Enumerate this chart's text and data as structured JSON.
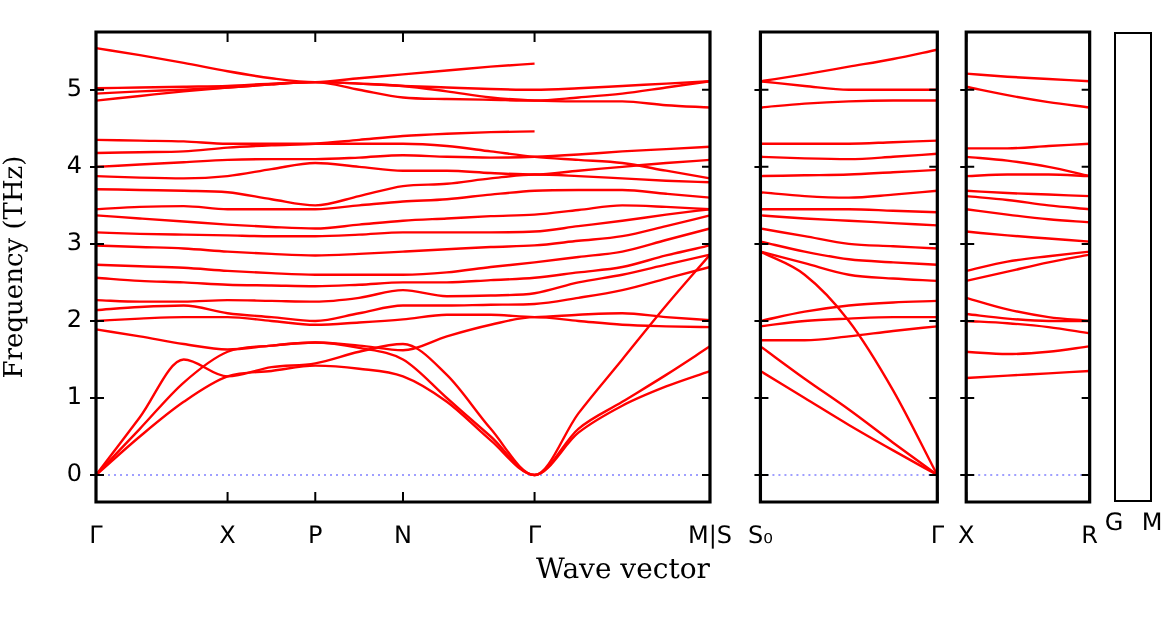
{
  "chart_data": [
    {
      "type": "line",
      "xlabel": "Wave vector",
      "ylabel": "Frequency (THz)",
      "marker": "none",
      "line_style": "solid",
      "legend": false,
      "grid": false,
      "categories": [
        "Γ",
        null,
        null,
        "X",
        null,
        "P",
        null,
        "N",
        null,
        null,
        "Γ",
        null,
        null,
        null,
        "M|S"
      ],
      "ylim": [
        -0.35,
        5.75
      ],
      "yticks": [
        0,
        1,
        2,
        3,
        4,
        5
      ],
      "ref_lines": [
        {
          "axis": "y",
          "value": 0,
          "color": "#8080ff",
          "line_style": "dotted"
        }
      ],
      "series": [
        {
          "color": "#ff0000",
          "values": [
            0,
            0.5,
            0.95,
            1.28,
            1.35,
            1.42,
            1.38,
            1.28,
            0.95,
            0.45,
            0,
            0.55,
            0.9,
            1.15,
            1.35
          ]
        },
        {
          "color": "#ff0000",
          "values": [
            0,
            0.6,
            1.2,
            1.6,
            1.68,
            1.72,
            1.65,
            1.5,
            1.0,
            0.5,
            0,
            0.6,
            0.95,
            1.3,
            1.67
          ]
        },
        {
          "color": "#ff0000",
          "values": [
            0,
            0.75,
            1.5,
            1.28,
            1.4,
            1.45,
            1.6,
            1.7,
            1.3,
            0.6,
            0,
            0.8,
            1.5,
            2.2,
            2.86
          ]
        },
        {
          "color": "#ff0000",
          "values": [
            1.89,
            1.8,
            1.7,
            1.63,
            1.68,
            1.72,
            1.68,
            1.62,
            1.8,
            1.95,
            2.05,
            2.0,
            1.95,
            1.93,
            1.92
          ]
        },
        {
          "color": "#ff0000",
          "values": [
            2.0,
            2.03,
            2.05,
            2.05,
            2.0,
            1.95,
            1.98,
            2.02,
            2.08,
            2.08,
            2.05,
            2.08,
            2.1,
            2.05,
            2.01
          ]
        },
        {
          "color": "#ff0000",
          "values": [
            2.14,
            2.18,
            2.2,
            2.1,
            2.05,
            2.0,
            2.1,
            2.2,
            2.2,
            2.21,
            2.22,
            2.3,
            2.4,
            2.55,
            2.7
          ]
        },
        {
          "color": "#ff0000",
          "values": [
            2.27,
            2.25,
            2.25,
            2.27,
            2.26,
            2.25,
            2.3,
            2.4,
            2.32,
            2.33,
            2.36,
            2.5,
            2.6,
            2.73,
            2.86
          ]
        },
        {
          "color": "#ff0000",
          "values": [
            2.56,
            2.52,
            2.5,
            2.47,
            2.46,
            2.45,
            2.47,
            2.5,
            2.5,
            2.53,
            2.56,
            2.63,
            2.7,
            2.85,
            2.98
          ]
        },
        {
          "color": "#ff0000",
          "values": [
            2.73,
            2.71,
            2.69,
            2.65,
            2.62,
            2.6,
            2.6,
            2.6,
            2.63,
            2.7,
            2.76,
            2.83,
            2.9,
            3.05,
            3.2
          ]
        },
        {
          "color": "#ff0000",
          "values": [
            2.98,
            2.96,
            2.94,
            2.9,
            2.87,
            2.85,
            2.87,
            2.9,
            2.93,
            2.96,
            2.98,
            3.04,
            3.1,
            3.23,
            3.37
          ]
        },
        {
          "color": "#ff0000",
          "values": [
            3.15,
            3.13,
            3.12,
            3.11,
            3.1,
            3.1,
            3.12,
            3.15,
            3.15,
            3.15,
            3.16,
            3.23,
            3.3,
            3.38,
            3.45
          ]
        },
        {
          "color": "#ff0000",
          "values": [
            3.37,
            3.33,
            3.29,
            3.25,
            3.22,
            3.2,
            3.25,
            3.3,
            3.33,
            3.36,
            3.38,
            3.44,
            3.5,
            3.48,
            3.45
          ]
        },
        {
          "color": "#ff0000",
          "values": [
            3.45,
            3.48,
            3.49,
            3.45,
            3.45,
            3.45,
            3.5,
            3.55,
            3.58,
            3.64,
            3.69,
            3.7,
            3.7,
            3.65,
            3.6
          ]
        },
        {
          "color": "#ff0000",
          "values": [
            3.71,
            3.7,
            3.69,
            3.67,
            3.58,
            3.5,
            3.62,
            3.75,
            3.78,
            3.85,
            3.9,
            3.88,
            3.85,
            3.82,
            3.8
          ]
        },
        {
          "color": "#ff0000",
          "values": [
            3.88,
            3.86,
            3.85,
            3.88,
            3.97,
            4.05,
            4.0,
            3.95,
            3.95,
            3.92,
            3.9,
            3.95,
            4.0,
            4.05,
            4.09
          ]
        },
        {
          "color": "#ff0000",
          "values": [
            4.0,
            4.03,
            4.06,
            4.09,
            4.1,
            4.1,
            4.12,
            4.15,
            4.13,
            4.12,
            4.13,
            4.16,
            4.2,
            4.23,
            4.26
          ]
        },
        {
          "color": "#ff0000",
          "values": [
            4.18,
            4.19,
            4.2,
            4.25,
            4.28,
            4.3,
            4.35,
            4.4,
            4.43,
            4.45,
            4.46,
            null,
            null,
            null,
            null
          ]
        },
        {
          "color": "#ff0000",
          "values": [
            4.35,
            4.34,
            4.33,
            4.3,
            4.3,
            4.3,
            4.3,
            4.3,
            4.27,
            4.2,
            4.13,
            4.09,
            4.05,
            3.95,
            3.85
          ]
        },
        {
          "color": "#ff0000",
          "values": [
            4.86,
            4.92,
            4.98,
            5.03,
            5.07,
            5.1,
            5.08,
            5.05,
            4.98,
            4.9,
            4.86,
            4.85,
            4.85,
            4.8,
            4.77
          ]
        },
        {
          "color": "#ff0000",
          "values": [
            5.02,
            5.03,
            5.04,
            5.05,
            5.08,
            5.1,
            5.0,
            4.9,
            4.88,
            4.87,
            4.86,
            4.9,
            4.95,
            5.03,
            5.11
          ]
        },
        {
          "color": "#ff0000",
          "values": [
            4.95,
            4.98,
            5.0,
            5.03,
            5.07,
            5.1,
            5.08,
            5.05,
            5.03,
            5.01,
            5.0,
            5.02,
            5.05,
            5.08,
            5.11
          ]
        },
        {
          "color": "#ff0000",
          "values": [
            5.54,
            5.45,
            5.35,
            5.24,
            5.15,
            5.1,
            5.15,
            5.2,
            5.25,
            5.3,
            5.34,
            null,
            null,
            null,
            null
          ]
        }
      ]
    },
    {
      "type": "line",
      "marker": "none",
      "line_style": "solid",
      "legend": false,
      "grid": false,
      "tick_labels": "x",
      "categories": [
        "S₀",
        null,
        null,
        null,
        "Γ"
      ],
      "ylim": [
        -0.35,
        5.75
      ],
      "yticks": [
        0,
        1,
        2,
        3,
        4,
        5
      ],
      "ref_lines": [
        {
          "axis": "y",
          "value": 0,
          "color": "#8080ff",
          "line_style": "dotted"
        }
      ],
      "series": [
        {
          "color": "#ff0000",
          "values": [
            1.35,
            1.0,
            0.65,
            0.32,
            0
          ]
        },
        {
          "color": "#ff0000",
          "values": [
            1.67,
            1.25,
            0.85,
            0.42,
            0
          ]
        },
        {
          "color": "#ff0000",
          "values": [
            2.9,
            2.6,
            2.0,
            1.1,
            0
          ]
        },
        {
          "color": "#ff0000",
          "values": [
            1.75,
            1.75,
            1.8,
            1.87,
            1.93
          ]
        },
        {
          "color": "#ff0000",
          "values": [
            1.93,
            2.0,
            2.03,
            2.05,
            2.05
          ]
        },
        {
          "color": "#ff0000",
          "values": [
            2.0,
            2.12,
            2.2,
            2.24,
            2.26
          ]
        },
        {
          "color": "#ff0000",
          "values": [
            2.9,
            2.75,
            2.6,
            2.55,
            2.52
          ]
        },
        {
          "color": "#ff0000",
          "values": [
            3.03,
            2.9,
            2.8,
            2.76,
            2.73
          ]
        },
        {
          "color": "#ff0000",
          "values": [
            3.2,
            3.1,
            3.0,
            2.97,
            2.94
          ]
        },
        {
          "color": "#ff0000",
          "values": [
            3.37,
            3.33,
            3.3,
            3.27,
            3.24
          ]
        },
        {
          "color": "#ff0000",
          "values": [
            3.45,
            3.45,
            3.45,
            3.43,
            3.41
          ]
        },
        {
          "color": "#ff0000",
          "values": [
            3.67,
            3.62,
            3.6,
            3.64,
            3.69
          ]
        },
        {
          "color": "#ff0000",
          "values": [
            3.88,
            3.89,
            3.9,
            3.93,
            3.96
          ]
        },
        {
          "color": "#ff0000",
          "values": [
            4.13,
            4.11,
            4.1,
            4.13,
            4.17
          ]
        },
        {
          "color": "#ff0000",
          "values": [
            4.3,
            4.3,
            4.3,
            4.32,
            4.34
          ]
        },
        {
          "color": "#ff0000",
          "values": [
            4.77,
            4.82,
            4.85,
            4.86,
            4.86
          ]
        },
        {
          "color": "#ff0000",
          "values": [
            5.11,
            5.05,
            5.0,
            5.0,
            5.0
          ]
        },
        {
          "color": "#ff0000",
          "values": [
            5.11,
            5.2,
            5.3,
            5.4,
            5.52
          ]
        }
      ]
    },
    {
      "type": "line",
      "marker": "none",
      "line_style": "solid",
      "legend": false,
      "grid": false,
      "tick_labels": "x",
      "categories": [
        "X",
        null,
        null,
        "R"
      ],
      "ylim": [
        -0.35,
        5.75
      ],
      "yticks": [
        0,
        1,
        2,
        3,
        4,
        5
      ],
      "ref_lines": [
        {
          "axis": "y",
          "value": 0,
          "color": "#8080ff",
          "line_style": "dotted"
        }
      ],
      "series": [
        {
          "color": "#ff0000",
          "values": [
            1.26,
            1.29,
            1.32,
            1.35
          ]
        },
        {
          "color": "#ff0000",
          "values": [
            1.6,
            1.57,
            1.6,
            1.67
          ]
        },
        {
          "color": "#ff0000",
          "values": [
            2.0,
            1.97,
            1.92,
            1.84
          ]
        },
        {
          "color": "#ff0000",
          "values": [
            2.09,
            2.03,
            2.0,
            2.0
          ]
        },
        {
          "color": "#ff0000",
          "values": [
            2.3,
            2.15,
            2.05,
            2.0
          ]
        },
        {
          "color": "#ff0000",
          "values": [
            2.52,
            2.64,
            2.76,
            2.86
          ]
        },
        {
          "color": "#ff0000",
          "values": [
            2.65,
            2.77,
            2.84,
            2.9
          ]
        },
        {
          "color": "#ff0000",
          "values": [
            3.16,
            3.11,
            3.07,
            3.03
          ]
        },
        {
          "color": "#ff0000",
          "values": [
            3.45,
            3.38,
            3.32,
            3.28
          ]
        },
        {
          "color": "#ff0000",
          "values": [
            3.62,
            3.57,
            3.5,
            3.45
          ]
        },
        {
          "color": "#ff0000",
          "values": [
            3.69,
            3.66,
            3.64,
            3.62
          ]
        },
        {
          "color": "#ff0000",
          "values": [
            3.88,
            3.9,
            3.9,
            3.88
          ]
        },
        {
          "color": "#ff0000",
          "values": [
            4.13,
            4.08,
            4.0,
            3.88
          ]
        },
        {
          "color": "#ff0000",
          "values": [
            4.24,
            4.24,
            4.27,
            4.3
          ]
        },
        {
          "color": "#ff0000",
          "values": [
            5.04,
            4.93,
            4.84,
            4.77
          ]
        },
        {
          "color": "#ff0000",
          "values": [
            5.21,
            5.17,
            5.14,
            5.11
          ]
        }
      ]
    },
    {
      "type": "other",
      "categories": [
        "G",
        "M"
      ]
    }
  ]
}
